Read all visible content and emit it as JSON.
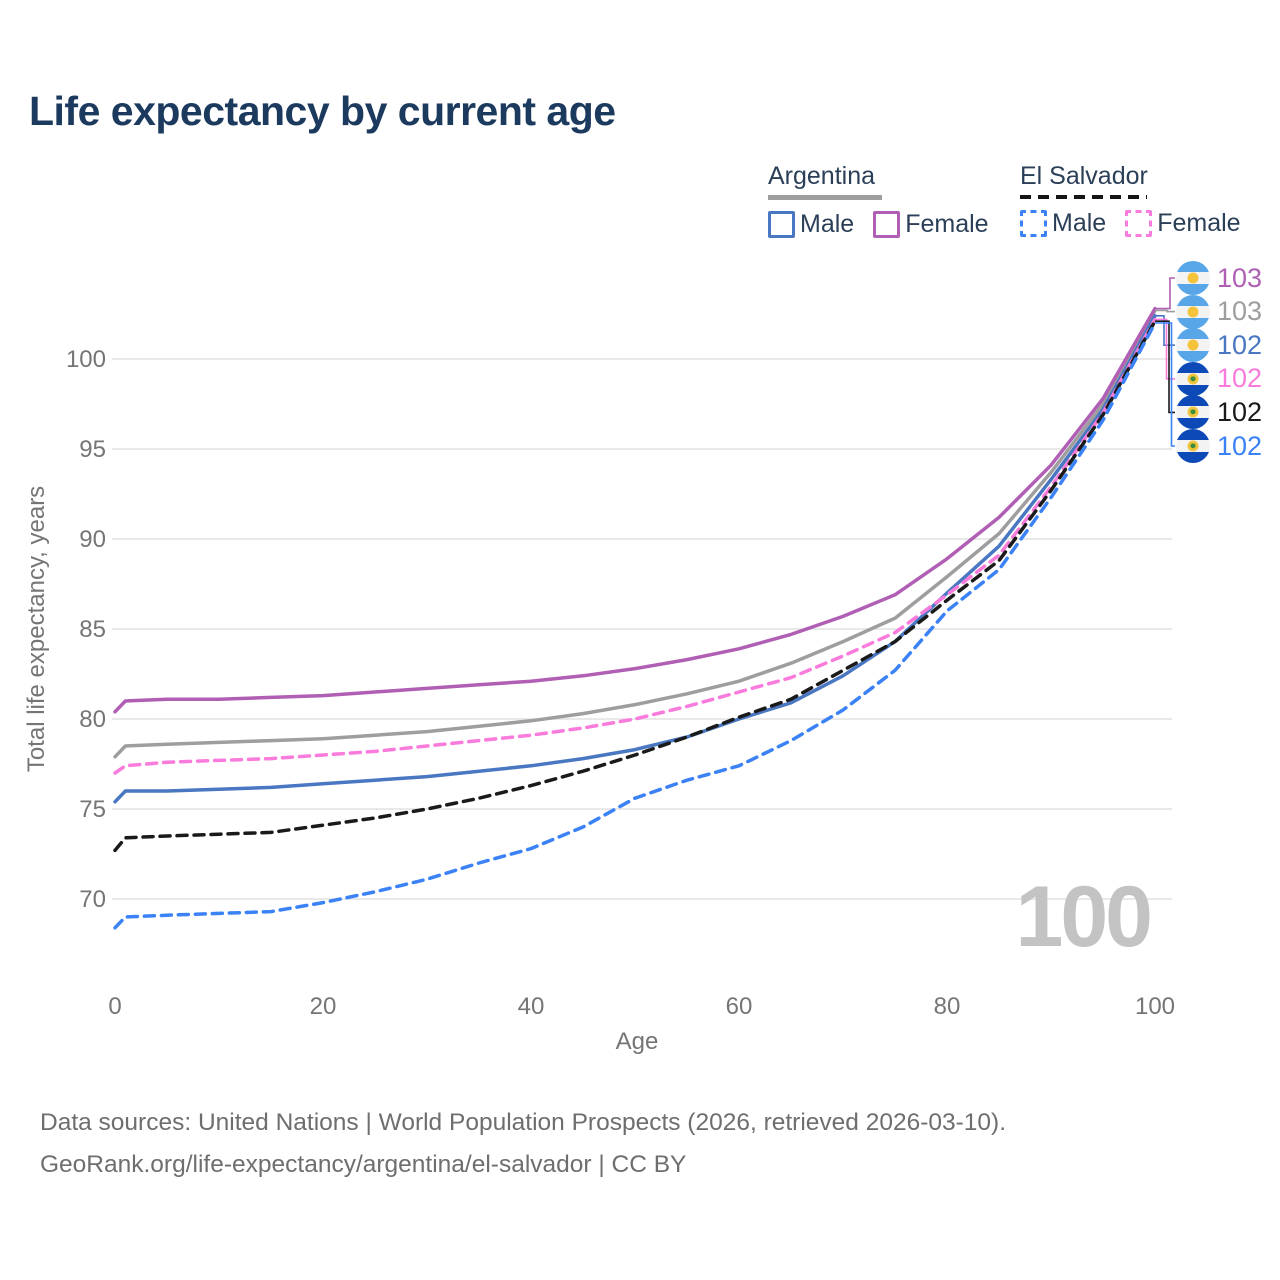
{
  "title": "Life expectancy by current age",
  "legend": {
    "groups": [
      {
        "country": "Argentina",
        "line_style": "solid",
        "underline_color": "#9e9e9e",
        "items": [
          {
            "label": "Male",
            "color": "#4a77c2"
          },
          {
            "label": "Female",
            "color": "#b05fb4"
          }
        ]
      },
      {
        "country": "El Salvador",
        "line_style": "dashed",
        "underline_color": "#151515",
        "items": [
          {
            "label": "Male",
            "color": "#3b82f6"
          },
          {
            "label": "Female",
            "color": "#f97bdb"
          }
        ]
      }
    ]
  },
  "chart_data": {
    "type": "line",
    "title": "Life expectancy by current age",
    "xlabel": "Age",
    "ylabel": "Total life expectancy, years",
    "xlim": [
      0,
      100
    ],
    "ylim": [
      67,
      104
    ],
    "x_ticks": [
      0,
      20,
      40,
      60,
      80,
      100
    ],
    "y_ticks": [
      70,
      75,
      80,
      85,
      90,
      95,
      100
    ],
    "grid": "horizontal",
    "legend_position": "top-right",
    "x": [
      0,
      1,
      5,
      10,
      15,
      20,
      25,
      30,
      35,
      40,
      45,
      50,
      55,
      60,
      65,
      70,
      75,
      80,
      85,
      90,
      95,
      100
    ],
    "series": [
      {
        "name": "Argentina Female",
        "country": "Argentina",
        "sex": "female",
        "color": "#b05fb4",
        "dashed": false,
        "end_label": "103",
        "flag": "argentina",
        "values": [
          80.4,
          81.0,
          81.1,
          81.1,
          81.2,
          81.3,
          81.5,
          81.7,
          81.9,
          82.1,
          82.4,
          82.8,
          83.3,
          83.9,
          84.7,
          85.7,
          86.9,
          88.9,
          91.2,
          94.1,
          97.8,
          102.8
        ]
      },
      {
        "name": "Argentina",
        "country": "Argentina",
        "sex": "both",
        "color": "#9e9e9e",
        "dashed": false,
        "end_label": "103",
        "flag": "argentina",
        "values": [
          77.9,
          78.5,
          78.6,
          78.7,
          78.8,
          78.9,
          79.1,
          79.3,
          79.6,
          79.9,
          80.3,
          80.8,
          81.4,
          82.1,
          83.1,
          84.3,
          85.6,
          87.9,
          90.3,
          93.7,
          97.5,
          102.7
        ]
      },
      {
        "name": "Argentina Male",
        "country": "Argentina",
        "sex": "male",
        "color": "#4a77c2",
        "dashed": false,
        "end_label": "102",
        "flag": "argentina",
        "values": [
          75.4,
          76.0,
          76.0,
          76.1,
          76.2,
          76.4,
          76.6,
          76.8,
          77.1,
          77.4,
          77.8,
          78.3,
          79.0,
          80.0,
          80.9,
          82.4,
          84.3,
          87.0,
          89.6,
          93.3,
          97.2,
          102.4
        ]
      },
      {
        "name": "El Salvador Female",
        "country": "El Salvador",
        "sex": "female",
        "color": "#f97bdb",
        "dashed": true,
        "end_label": "102",
        "flag": "elsalvador",
        "values": [
          77.0,
          77.4,
          77.6,
          77.7,
          77.8,
          78.0,
          78.2,
          78.5,
          78.8,
          79.1,
          79.5,
          80.0,
          80.7,
          81.5,
          82.3,
          83.5,
          84.8,
          86.9,
          89.1,
          92.9,
          97.0,
          102.2
        ]
      },
      {
        "name": "El Salvador",
        "country": "El Salvador",
        "sex": "both",
        "color": "#1a1a1a",
        "dashed": true,
        "end_label": "102",
        "flag": "elsalvador",
        "values": [
          72.7,
          73.4,
          73.5,
          73.6,
          73.7,
          74.1,
          74.5,
          75.0,
          75.6,
          76.3,
          77.1,
          78.0,
          79.0,
          80.1,
          81.1,
          82.7,
          84.3,
          86.6,
          88.8,
          92.7,
          96.9,
          102.1
        ]
      },
      {
        "name": "El Salvador Male",
        "country": "El Salvador",
        "sex": "male",
        "color": "#3b82f6",
        "dashed": true,
        "end_label": "102",
        "flag": "elsalvador",
        "values": [
          68.4,
          69.0,
          69.1,
          69.2,
          69.3,
          69.8,
          70.4,
          71.1,
          72.0,
          72.8,
          74.0,
          75.6,
          76.6,
          77.4,
          78.8,
          80.5,
          82.7,
          86.0,
          88.3,
          92.3,
          96.6,
          102.0
        ]
      }
    ],
    "watermark": "100"
  },
  "footer": {
    "line1": "Data sources: United Nations | World Population Prospects (2026, retrieved 2026-03-10).",
    "line2": "GeoRank.org/life-expectancy/argentina/el-salvador | CC BY"
  },
  "colors": {
    "title": "#1b3a5e",
    "axis_text": "#757575",
    "gridline": "#e9e9e9",
    "watermark": "#c3c3c3",
    "footer": "#6e6e6e"
  }
}
